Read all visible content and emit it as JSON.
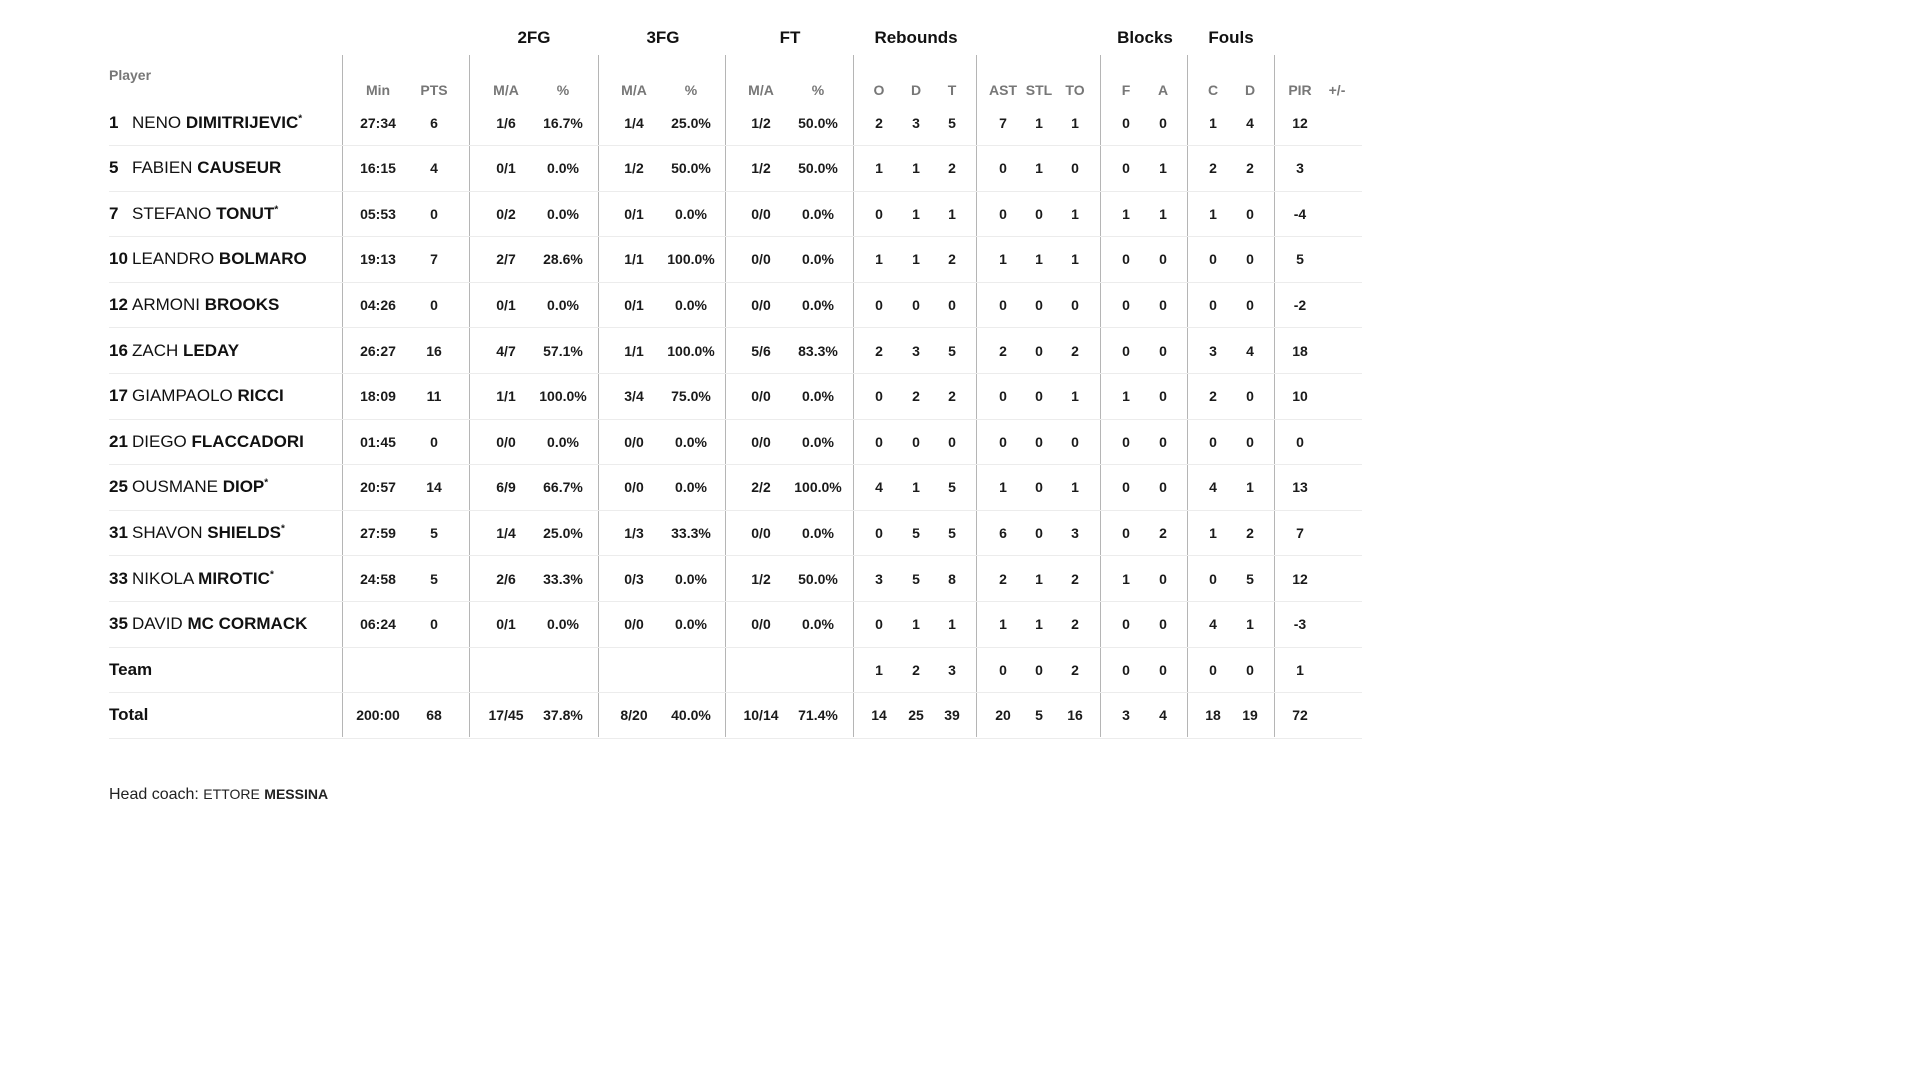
{
  "header": {
    "player_label": "Player",
    "groups": [
      "2FG",
      "3FG",
      "FT",
      "Rebounds",
      "Blocks",
      "Fouls"
    ],
    "columns": [
      "Min",
      "PTS",
      "M/A",
      "%",
      "M/A",
      "%",
      "M/A",
      "%",
      "O",
      "D",
      "T",
      "AST",
      "STL",
      "TO",
      "F",
      "A",
      "C",
      "D",
      "PIR",
      "+/-"
    ]
  },
  "rows": [
    {
      "num": "1",
      "first": "NENO",
      "last": "DIMITRIJEVIC",
      "starter": true,
      "stats": [
        "27:34",
        "6",
        "1/6",
        "16.7%",
        "1/4",
        "25.0%",
        "1/2",
        "50.0%",
        "2",
        "3",
        "5",
        "7",
        "1",
        "1",
        "0",
        "0",
        "1",
        "4",
        "12",
        ""
      ]
    },
    {
      "num": "5",
      "first": "FABIEN",
      "last": "CAUSEUR",
      "starter": false,
      "stats": [
        "16:15",
        "4",
        "0/1",
        "0.0%",
        "1/2",
        "50.0%",
        "1/2",
        "50.0%",
        "1",
        "1",
        "2",
        "0",
        "1",
        "0",
        "0",
        "1",
        "2",
        "2",
        "3",
        ""
      ]
    },
    {
      "num": "7",
      "first": "STEFANO",
      "last": "TONUT",
      "starter": true,
      "stats": [
        "05:53",
        "0",
        "0/2",
        "0.0%",
        "0/1",
        "0.0%",
        "0/0",
        "0.0%",
        "0",
        "1",
        "1",
        "0",
        "0",
        "1",
        "1",
        "1",
        "1",
        "0",
        "-4",
        ""
      ]
    },
    {
      "num": "10",
      "first": "LEANDRO",
      "last": "BOLMARO",
      "starter": false,
      "stats": [
        "19:13",
        "7",
        "2/7",
        "28.6%",
        "1/1",
        "100.0%",
        "0/0",
        "0.0%",
        "1",
        "1",
        "2",
        "1",
        "1",
        "1",
        "0",
        "0",
        "0",
        "0",
        "5",
        ""
      ]
    },
    {
      "num": "12",
      "first": "ARMONI",
      "last": "BROOKS",
      "starter": false,
      "stats": [
        "04:26",
        "0",
        "0/1",
        "0.0%",
        "0/1",
        "0.0%",
        "0/0",
        "0.0%",
        "0",
        "0",
        "0",
        "0",
        "0",
        "0",
        "0",
        "0",
        "0",
        "0",
        "-2",
        ""
      ]
    },
    {
      "num": "16",
      "first": "ZACH",
      "last": "LEDAY",
      "starter": false,
      "stats": [
        "26:27",
        "16",
        "4/7",
        "57.1%",
        "1/1",
        "100.0%",
        "5/6",
        "83.3%",
        "2",
        "3",
        "5",
        "2",
        "0",
        "2",
        "0",
        "0",
        "3",
        "4",
        "18",
        ""
      ]
    },
    {
      "num": "17",
      "first": "GIAMPAOLO",
      "last": "RICCI",
      "starter": false,
      "stats": [
        "18:09",
        "11",
        "1/1",
        "100.0%",
        "3/4",
        "75.0%",
        "0/0",
        "0.0%",
        "0",
        "2",
        "2",
        "0",
        "0",
        "1",
        "1",
        "0",
        "2",
        "0",
        "10",
        ""
      ]
    },
    {
      "num": "21",
      "first": "DIEGO",
      "last": "FLACCADORI",
      "starter": false,
      "stats": [
        "01:45",
        "0",
        "0/0",
        "0.0%",
        "0/0",
        "0.0%",
        "0/0",
        "0.0%",
        "0",
        "0",
        "0",
        "0",
        "0",
        "0",
        "0",
        "0",
        "0",
        "0",
        "0",
        ""
      ]
    },
    {
      "num": "25",
      "first": "OUSMANE",
      "last": "DIOP",
      "starter": true,
      "stats": [
        "20:57",
        "14",
        "6/9",
        "66.7%",
        "0/0",
        "0.0%",
        "2/2",
        "100.0%",
        "4",
        "1",
        "5",
        "1",
        "0",
        "1",
        "0",
        "0",
        "4",
        "1",
        "13",
        ""
      ]
    },
    {
      "num": "31",
      "first": "SHAVON",
      "last": "SHIELDS",
      "starter": true,
      "stats": [
        "27:59",
        "5",
        "1/4",
        "25.0%",
        "1/3",
        "33.3%",
        "0/0",
        "0.0%",
        "0",
        "5",
        "5",
        "6",
        "0",
        "3",
        "0",
        "2",
        "1",
        "2",
        "7",
        ""
      ]
    },
    {
      "num": "33",
      "first": "NIKOLA",
      "last": "MIROTIC",
      "starter": true,
      "stats": [
        "24:58",
        "5",
        "2/6",
        "33.3%",
        "0/3",
        "0.0%",
        "1/2",
        "50.0%",
        "3",
        "5",
        "8",
        "2",
        "1",
        "2",
        "1",
        "0",
        "0",
        "5",
        "12",
        ""
      ]
    },
    {
      "num": "35",
      "first": "DAVID",
      "last": "MC CORMACK",
      "starter": false,
      "stats": [
        "06:24",
        "0",
        "0/1",
        "0.0%",
        "0/0",
        "0.0%",
        "0/0",
        "0.0%",
        "0",
        "1",
        "1",
        "1",
        "1",
        "2",
        "0",
        "0",
        "4",
        "1",
        "-3",
        ""
      ]
    },
    {
      "label": "Team",
      "stats": [
        "",
        "",
        "",
        "",
        "",
        "",
        "",
        "",
        "1",
        "2",
        "3",
        "0",
        "0",
        "2",
        "0",
        "0",
        "0",
        "0",
        "1",
        ""
      ]
    },
    {
      "label": "Total",
      "stats": [
        "200:00",
        "68",
        "17/45",
        "37.8%",
        "8/20",
        "40.0%",
        "10/14",
        "71.4%",
        "14",
        "25",
        "39",
        "20",
        "5",
        "16",
        "3",
        "4",
        "18",
        "19",
        "72",
        ""
      ]
    }
  ],
  "coach": {
    "label": "Head coach:",
    "first": "ETTORE",
    "last": "MESSINA"
  },
  "colors": {
    "text": "#111111",
    "muted": "#777777",
    "divider": "#b5b5b5",
    "row_border": "#ececec"
  }
}
